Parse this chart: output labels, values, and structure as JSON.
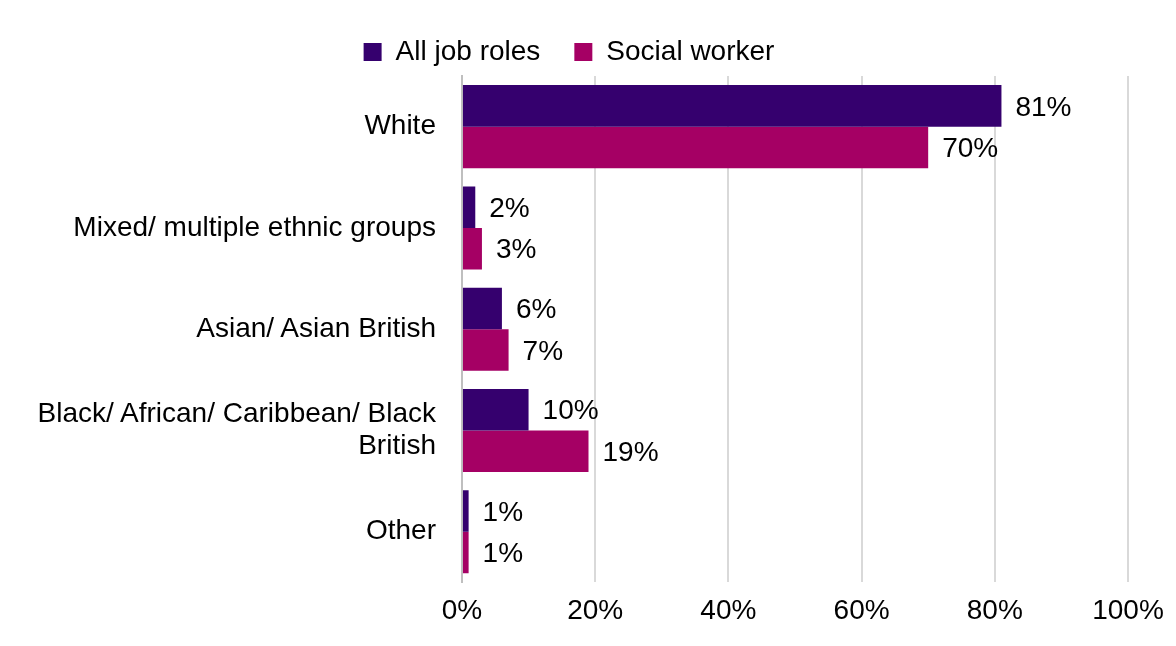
{
  "chart_data": {
    "type": "bar",
    "orientation": "horizontal",
    "categories": [
      "White",
      "Mixed/ multiple ethnic groups",
      "Asian/ Asian British",
      "Black/ African/ Caribbean/ Black British",
      "Other"
    ],
    "series": [
      {
        "name": "All job roles",
        "color": "#35006e",
        "values": [
          81,
          2,
          6,
          10,
          1
        ],
        "value_labels": [
          "81%",
          "2%",
          "6%",
          "10%",
          "1%"
        ]
      },
      {
        "name": "Social worker",
        "color": "#a50064",
        "values": [
          70,
          3,
          7,
          19,
          1
        ],
        "value_labels": [
          "70%",
          "3%",
          "7%",
          "19%",
          "1%"
        ]
      }
    ],
    "xlim": [
      0,
      100
    ],
    "xticks": [
      {
        "value": 0,
        "label": "0%"
      },
      {
        "value": 20,
        "label": "20%"
      },
      {
        "value": 40,
        "label": "40%"
      },
      {
        "value": 60,
        "label": "60%"
      },
      {
        "value": 80,
        "label": "80%"
      },
      {
        "value": 100,
        "label": "100%"
      }
    ],
    "grid": "x",
    "legend": "top"
  }
}
